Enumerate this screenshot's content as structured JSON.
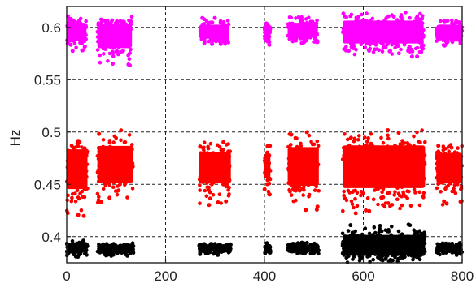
{
  "chart_data": {
    "type": "scatter",
    "title": "",
    "xlabel": "",
    "ylabel": "Hz",
    "xlim": [
      0,
      800
    ],
    "ylim": [
      0.375,
      0.62
    ],
    "grid": true,
    "x_ticks": [
      0,
      200,
      400,
      600,
      800
    ],
    "x_tick_labels": [
      "0",
      "200",
      "400",
      "600",
      "800"
    ],
    "y_ticks": [
      0.4,
      0.45,
      0.5,
      0.55,
      0.6
    ],
    "y_tick_labels": [
      "0.4",
      "0.45",
      "0.5",
      "0.55",
      "0.6"
    ],
    "series": [
      {
        "color": "#ff00ff",
        "center": 0.595,
        "segments": [
          {
            "x": [
              0,
              40
            ],
            "low": 0.577,
            "high": 0.612
          },
          {
            "x": [
              62,
              132
            ],
            "low": 0.562,
            "high": 0.611
          },
          {
            "x": [
              268,
              328
            ],
            "low": 0.582,
            "high": 0.609
          },
          {
            "x": [
              400,
              412
            ],
            "low": 0.583,
            "high": 0.605
          },
          {
            "x": [
              447,
              508
            ],
            "low": 0.584,
            "high": 0.612
          },
          {
            "x": [
              558,
              722
            ],
            "low": 0.572,
            "high": 0.616
          },
          {
            "x": [
              748,
              800
            ],
            "low": 0.582,
            "high": 0.609
          }
        ]
      },
      {
        "color": "#ff0000",
        "center": 0.468,
        "segments": [
          {
            "x": [
              0,
              42
            ],
            "low": 0.418,
            "high": 0.496
          },
          {
            "x": [
              62,
              135
            ],
            "low": 0.432,
            "high": 0.502
          },
          {
            "x": [
              268,
              332
            ],
            "low": 0.43,
            "high": 0.492
          },
          {
            "x": [
              400,
              412
            ],
            "low": 0.44,
            "high": 0.488
          },
          {
            "x": [
              447,
              510
            ],
            "low": 0.425,
            "high": 0.5
          },
          {
            "x": [
              558,
              725
            ],
            "low": 0.42,
            "high": 0.503
          },
          {
            "x": [
              748,
              800
            ],
            "low": 0.43,
            "high": 0.49
          }
        ]
      },
      {
        "color": "#000000",
        "center": 0.389,
        "segments": [
          {
            "x": [
              0,
              42
            ],
            "low": 0.38,
            "high": 0.397
          },
          {
            "x": [
              62,
              135
            ],
            "low": 0.381,
            "high": 0.395
          },
          {
            "x": [
              268,
              332
            ],
            "low": 0.382,
            "high": 0.394
          },
          {
            "x": [
              400,
              412
            ],
            "low": 0.383,
            "high": 0.394
          },
          {
            "x": [
              447,
              510
            ],
            "low": 0.383,
            "high": 0.395
          },
          {
            "x": [
              558,
              725
            ],
            "low": 0.375,
            "high": 0.412
          },
          {
            "x": [
              748,
              800
            ],
            "low": 0.382,
            "high": 0.395
          }
        ]
      }
    ]
  }
}
